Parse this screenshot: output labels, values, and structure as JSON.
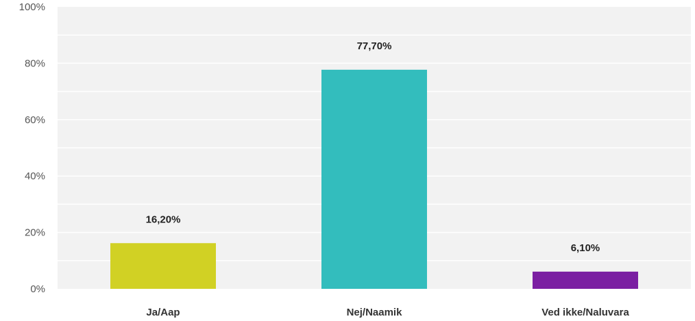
{
  "chart_data": {
    "type": "bar",
    "categories": [
      "Ja/Aap",
      "Nej/Naamik",
      "Ved ikke/Naluvara"
    ],
    "values": [
      16.2,
      77.7,
      6.1
    ],
    "value_labels": [
      "16,20%",
      "77,70%",
      "6,10%"
    ],
    "colors": [
      "#d1d124",
      "#33bdbd",
      "#7b1fa2"
    ],
    "ylim": [
      0,
      100
    ],
    "yticks": [
      0,
      20,
      40,
      60,
      80,
      100
    ],
    "ytick_labels": [
      "0%",
      "20%",
      "40%",
      "60%",
      "80%",
      "100%"
    ],
    "grid": true,
    "plot_background": "#f2f2f2",
    "grid_color": "#ffffff"
  }
}
